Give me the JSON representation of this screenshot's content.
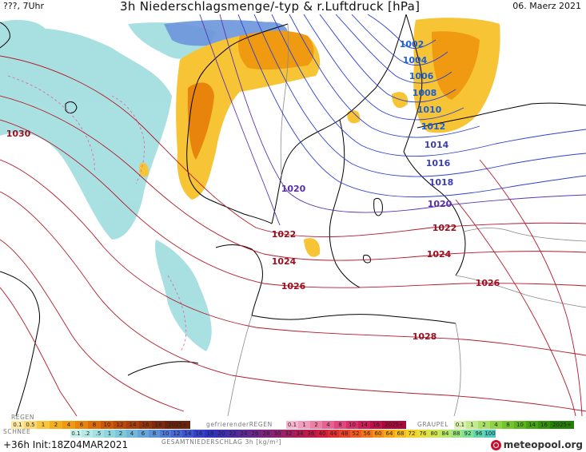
{
  "header": {
    "left": "???, 7Uhr",
    "title": "3h Niederschlagsmenge/-typ & r.Luftdruck [hPa]",
    "date": "06. Maerz 2021"
  },
  "isobar_labels": [
    {
      "text": "1002",
      "color": "#1a5fd6"
    },
    {
      "text": "1004",
      "color": "#1a5fd6"
    },
    {
      "text": "1006",
      "color": "#1a5fd6"
    },
    {
      "text": "1008",
      "color": "#1a5fd6"
    },
    {
      "text": "1010",
      "color": "#1a5fd6"
    },
    {
      "text": "1012",
      "color": "#1a5fd6"
    },
    {
      "text": "1014",
      "color": "#3b3fae"
    },
    {
      "text": "1016",
      "color": "#3b3fae"
    },
    {
      "text": "1018",
      "color": "#3b3fae"
    },
    {
      "text": "1020",
      "color": "#5a2ea6"
    },
    {
      "text": "1020",
      "color": "#5a2ea6"
    },
    {
      "text": "1022",
      "color": "#9b1020"
    },
    {
      "text": "1022",
      "color": "#9b1020"
    },
    {
      "text": "1024",
      "color": "#9b1020"
    },
    {
      "text": "1024",
      "color": "#9b1020"
    },
    {
      "text": "1026",
      "color": "#9b1020"
    },
    {
      "text": "1026",
      "color": "#9b1020"
    },
    {
      "text": "1028",
      "color": "#9b1020"
    },
    {
      "text": "1030",
      "color": "#9b1020"
    }
  ],
  "legend": {
    "rain_label": "REGEN",
    "rain_values": [
      "0.1",
      "0.5",
      "1",
      "2",
      "4",
      "6",
      "8",
      "10",
      "12",
      "14",
      "16",
      "18",
      "2025+"
    ],
    "freezing_rain_label": "gefrierenderREGEN",
    "freezing_values": [
      "0.1",
      "1",
      "2",
      "4",
      "8",
      "10",
      "14",
      "16",
      "2025+"
    ],
    "graupel_label": "GRAUPEL",
    "graupel_values": [
      "0.1",
      "1",
      "2",
      "4",
      "8",
      "10",
      "14",
      "16",
      "2025+"
    ],
    "snow_label": "SCHNEE",
    "snow_values": [
      "0.1",
      ".2",
      ".5",
      "1",
      "2",
      "4",
      "6",
      "8",
      "10",
      "12",
      "14",
      "16",
      "18",
      "20",
      "22",
      "24",
      "26",
      "28",
      "30",
      "32",
      "34",
      "36",
      "40",
      "44",
      "48",
      "52",
      "56",
      "60",
      "64",
      "68",
      "72",
      "76",
      "80",
      "84",
      "88",
      "92",
      "96",
      "100"
    ],
    "total_label": "GESAMTNIEDERSCHLAG 3h [kg/m²]",
    "rain_colors": [
      "#fde9a0",
      "#fcd874",
      "#f9c53d",
      "#f5ae1b",
      "#ef9a10",
      "#e8840b",
      "#dc6d08",
      "#cd5907",
      "#bb4a08",
      "#a83e0a",
      "#94330b",
      "#7f2a0b",
      "#6b220a"
    ],
    "freezing_colors": [
      "#f8b6cf",
      "#f39bbb",
      "#ee7ea6",
      "#e86192",
      "#e1477e",
      "#d82f6a",
      "#cc1d57",
      "#bd1046",
      "#aa0838"
    ],
    "graupel_colors": [
      "#d9f2b0",
      "#c2e98b",
      "#a9df66",
      "#8fd244",
      "#74c42b",
      "#5bb41b",
      "#46a311",
      "#34910b",
      "#247f07"
    ],
    "snow_colors": [
      "#c9f1ee",
      "#b6e9e7",
      "#a2e0e2",
      "#8fd5dd",
      "#7ec7da",
      "#70b7d8",
      "#65a5d7",
      "#5b91d6",
      "#517cd5",
      "#4768d3",
      "#3e54d0",
      "#3641cb",
      "#2f33c1",
      "#3a2fb0",
      "#4b2da2",
      "#5c2a95",
      "#6d2788",
      "#7e247b",
      "#8f216e",
      "#a01e61",
      "#b11b54",
      "#c21a48",
      "#d11e3c",
      "#de2c30",
      "#e84127",
      "#ef5a1f",
      "#f47419",
      "#f78f15",
      "#f9a815",
      "#f8bf1a",
      "#f1d227",
      "#e4df3a",
      "#d1e64f",
      "#b9e867",
      "#9de67f",
      "#80e197",
      "#63d8ae",
      "#4ccbc2"
    ]
  },
  "footer": {
    "run": "+36h Init:18Z04MAR2021",
    "brand": "meteopool.org"
  }
}
